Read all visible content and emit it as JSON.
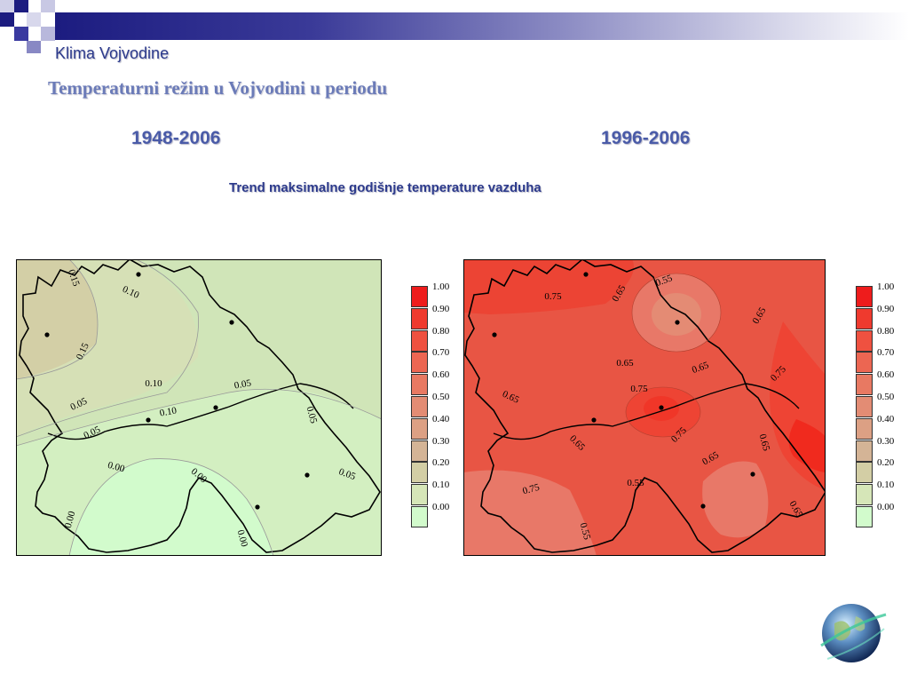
{
  "header": {
    "subtitle": "Klima Vojvodine",
    "title": "Temperaturni režim u Vojvodini u periodu",
    "colors": {
      "accent": "#1c1c80",
      "title": "#6b7bb8",
      "text": "#2c3a8c"
    }
  },
  "periods": {
    "left": "1948-2006",
    "right": "1996-2006"
  },
  "trend_label": "Trend maksimalne godišnje temperature vazduha",
  "maps": {
    "left": {
      "contours": [
        "0.15",
        "0.10",
        "0.15",
        "0.10",
        "0.05",
        "0.10",
        "0.05",
        "0.05",
        "0.05",
        "0.00",
        "0.00",
        "0.05",
        "0.00",
        "0.00"
      ]
    },
    "right": {
      "contours": [
        "0.65",
        "0.55",
        "0.75",
        "0.65",
        "0.65",
        "0.65",
        "0.75",
        "0.65",
        "0.75",
        "0.65",
        "0.75",
        "0.65",
        "0.65",
        "0.55",
        "0.75",
        "0.65",
        "0.55"
      ]
    }
  },
  "legend": {
    "labels": [
      "1.00",
      "0.90",
      "0.80",
      "0.70",
      "0.60",
      "0.50",
      "0.40",
      "0.30",
      "0.20",
      "0.10",
      "0.00"
    ],
    "colors": [
      "#ee1c1c",
      "#ef3a2e",
      "#ef5140",
      "#ec6652",
      "#e87962",
      "#e38c74",
      "#dca084",
      "#d4b496",
      "#d3cea5",
      "#d6e6b8",
      "#d2fbcc"
    ]
  },
  "icons": {
    "logo": "globe-icon"
  }
}
